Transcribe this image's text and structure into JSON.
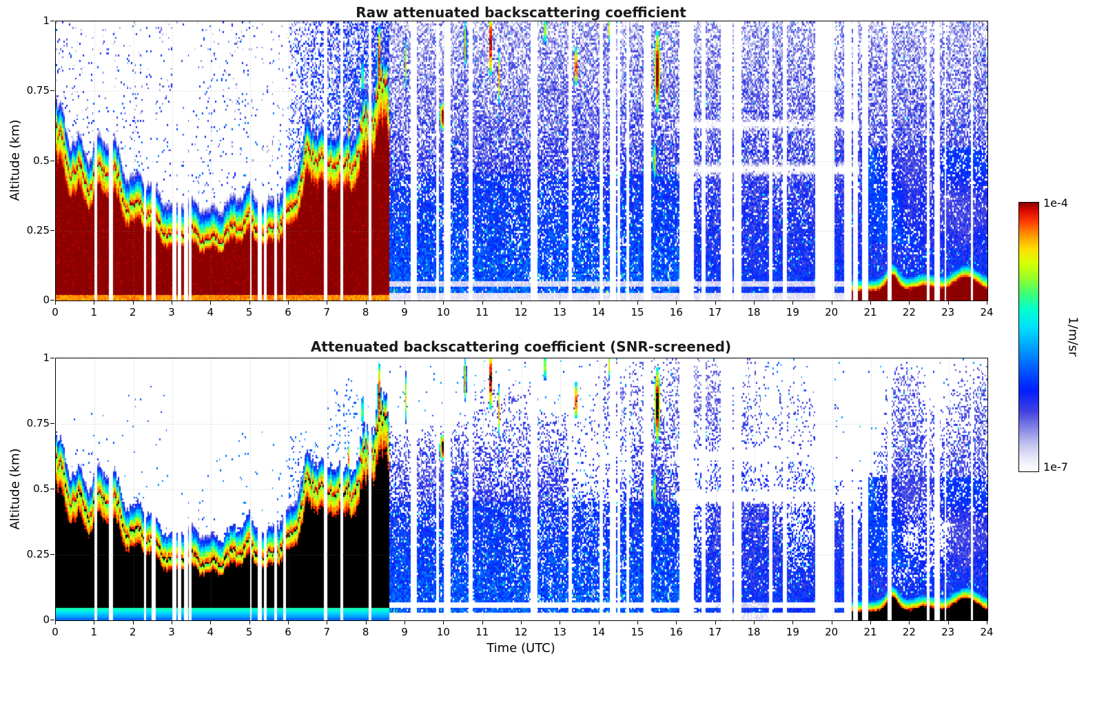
{
  "chart_data": {
    "type": "heatmap",
    "panels": [
      {
        "title": "Raw attenuated backscattering coefficient",
        "screened": false
      },
      {
        "title": "Attenuated backscattering coefficient (SNR-screened)",
        "screened": true
      }
    ],
    "xlabel": "Time (UTC)",
    "ylabel": "Altitude (km)",
    "x_range_utc": [
      0,
      24
    ],
    "y_range_km": [
      0,
      1
    ],
    "x_ticks": [
      "0",
      "1",
      "2",
      "3",
      "4",
      "5",
      "6",
      "7",
      "8",
      "9",
      "10",
      "11",
      "12",
      "13",
      "14",
      "15",
      "16",
      "17",
      "18",
      "19",
      "20",
      "21",
      "22",
      "23",
      "24"
    ],
    "y_ticks": [
      "0",
      "0.25",
      "0.5",
      "0.75",
      "1"
    ],
    "grid": true,
    "colorbar": {
      "scale": "log",
      "min": 1e-07,
      "max": 0.0001,
      "min_label": "1e-7",
      "max_label": "1e-4",
      "units": "1/m/sr",
      "stops": [
        [
          0.0,
          "#ffffff"
        ],
        [
          0.05,
          "#e8e8f8"
        ],
        [
          0.1,
          "#c2c2ee"
        ],
        [
          0.16,
          "#8585e6"
        ],
        [
          0.22,
          "#4444e0"
        ],
        [
          0.3,
          "#001eff"
        ],
        [
          0.38,
          "#005aff"
        ],
        [
          0.46,
          "#00a0ff"
        ],
        [
          0.53,
          "#00dcff"
        ],
        [
          0.6,
          "#00ffd2"
        ],
        [
          0.66,
          "#3cff78"
        ],
        [
          0.72,
          "#96ff28"
        ],
        [
          0.78,
          "#dcff00"
        ],
        [
          0.83,
          "#ffdc00"
        ],
        [
          0.88,
          "#ff9600"
        ],
        [
          0.93,
          "#ff3c00"
        ],
        [
          0.97,
          "#dc0a00"
        ],
        [
          1.0,
          "#8c0000"
        ]
      ]
    },
    "boundary_layer_top_km": {
      "t": [
        0,
        0.3,
        0.6,
        0.9,
        1.2,
        1.5,
        1.8,
        2.1,
        2.4,
        2.7,
        3.0,
        3.3,
        3.6,
        4.0,
        4.4,
        4.8,
        5.0,
        5.2,
        5.5,
        5.8,
        6.0,
        6.2,
        6.4,
        6.6,
        6.8,
        7.0,
        7.2,
        7.4,
        7.6,
        7.8,
        8.0,
        8.2,
        8.4,
        8.6
      ],
      "h": [
        0.56,
        0.5,
        0.46,
        0.4,
        0.44,
        0.46,
        0.36,
        0.32,
        0.3,
        0.27,
        0.24,
        0.23,
        0.22,
        0.22,
        0.23,
        0.26,
        0.29,
        0.26,
        0.24,
        0.26,
        0.3,
        0.38,
        0.5,
        0.55,
        0.5,
        0.45,
        0.5,
        0.47,
        0.52,
        0.55,
        0.6,
        0.66,
        0.7,
        0.75
      ]
    },
    "cloud_features": [
      [
        8.33,
        0.85,
        0.05,
        0.28,
        -3.9
      ],
      [
        8.5,
        0.62,
        0.04,
        0.12,
        -4.5
      ],
      [
        9.02,
        0.85,
        0.03,
        0.2,
        -4.6
      ],
      [
        9.98,
        0.66,
        0.1,
        0.1,
        -3.8
      ],
      [
        10.05,
        0.78,
        0.05,
        0.12,
        -4.3
      ],
      [
        10.55,
        0.92,
        0.04,
        0.18,
        -4.5
      ],
      [
        11.2,
        0.92,
        0.05,
        0.25,
        -3.85
      ],
      [
        11.42,
        0.8,
        0.03,
        0.2,
        -4.4
      ],
      [
        12.32,
        0.93,
        0.05,
        0.22,
        -3.85
      ],
      [
        12.6,
        0.97,
        0.03,
        0.12,
        -4.3
      ],
      [
        13.4,
        0.84,
        0.04,
        0.15,
        -3.95
      ],
      [
        14.25,
        0.97,
        0.03,
        0.1,
        -4.6
      ],
      [
        15.5,
        0.82,
        0.07,
        0.3,
        -3.8
      ],
      [
        15.42,
        0.5,
        0.05,
        0.15,
        -4.3
      ],
      [
        7.55,
        0.62,
        0.03,
        0.1,
        -4.2
      ],
      [
        7.9,
        0.8,
        0.03,
        0.15,
        -4.6
      ]
    ],
    "surface_layer": {
      "start_utc": 20.45,
      "base_km": 0.03,
      "bumps": [
        [
          21.55,
          0.055,
          0.15
        ],
        [
          23.45,
          0.05,
          0.3
        ],
        [
          22.4,
          0.02,
          0.25
        ]
      ]
    },
    "data_gaps_spec": [
      [
        0.25,
        6.2,
        13,
        0.025,
        0.07
      ],
      [
        6.2,
        8.6,
        3,
        0.02,
        0.05
      ],
      [
        8.6,
        15.0,
        17,
        0.02,
        0.08
      ],
      [
        15.0,
        16.3,
        5,
        0.05,
        0.16
      ],
      [
        16.35,
        20.8,
        17,
        0.05,
        0.16
      ],
      [
        20.9,
        24.0,
        6,
        0.02,
        0.05
      ]
    ],
    "gap_seed": 20177
  }
}
